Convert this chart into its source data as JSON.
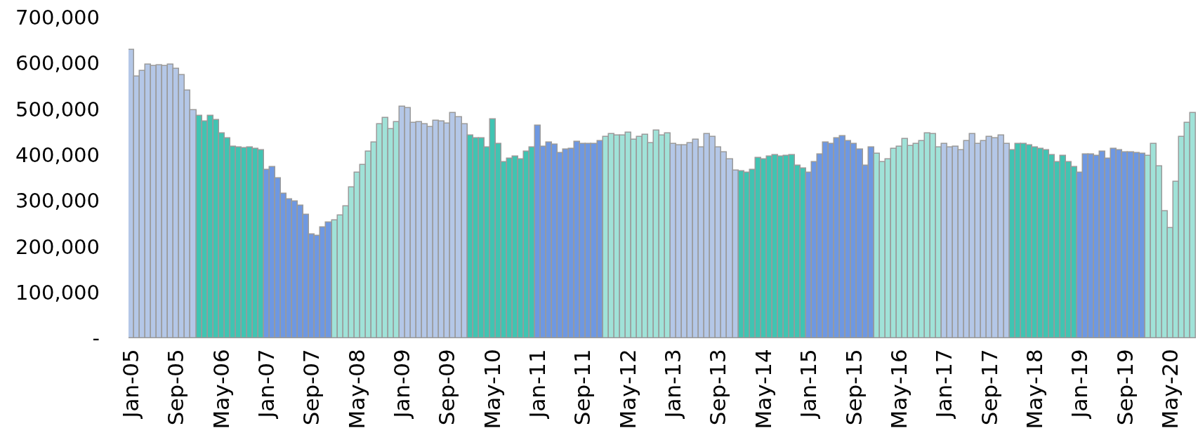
{
  "chart_data": {
    "type": "bar",
    "categories": [
      "Jan-05",
      null,
      null,
      null,
      null,
      null,
      null,
      null,
      "Sep-05",
      null,
      null,
      null,
      null,
      null,
      null,
      null,
      "May-06",
      null,
      null,
      null,
      null,
      null,
      null,
      null,
      "Jan-07",
      null,
      null,
      null,
      null,
      null,
      null,
      null,
      "Sep-07",
      null,
      null,
      null,
      null,
      null,
      null,
      null,
      "May-08",
      null,
      null,
      null,
      null,
      null,
      null,
      null,
      "Jan-09",
      null,
      null,
      null,
      null,
      null,
      null,
      null,
      "Sep-09",
      null,
      null,
      null,
      null,
      null,
      null,
      null,
      "May-10",
      null,
      null,
      null,
      null,
      null,
      null,
      null,
      "Jan-11",
      null,
      null,
      null,
      null,
      null,
      null,
      null,
      "Sep-11",
      null,
      null,
      null,
      null,
      null,
      null,
      null,
      "May-12",
      null,
      null,
      null,
      null,
      null,
      null,
      null,
      "Jan-13",
      null,
      null,
      null,
      null,
      null,
      null,
      null,
      "Sep-13",
      null,
      null,
      null,
      null,
      null,
      null,
      null,
      "May-14",
      null,
      null,
      null,
      null,
      null,
      null,
      null,
      "Jan-15",
      null,
      null,
      null,
      null,
      null,
      null,
      null,
      "Sep-15",
      null,
      null,
      null,
      null,
      null,
      null,
      null,
      "May-16",
      null,
      null,
      null,
      null,
      null,
      null,
      null,
      "Jan-17",
      null,
      null,
      null,
      null,
      null,
      null,
      null,
      "Sep-17",
      null,
      null,
      null,
      null,
      null,
      null,
      null,
      "May-18",
      null,
      null,
      null,
      null,
      null,
      null,
      null,
      "Jan-19",
      null,
      null,
      null,
      null,
      null,
      null,
      null,
      "Sep-19",
      null,
      null,
      null,
      null,
      null,
      null,
      null,
      "May-20",
      null,
      null,
      null,
      null
    ],
    "values": [
      630000,
      571000,
      584000,
      598000,
      594000,
      596000,
      594000,
      598000,
      588000,
      574000,
      541000,
      498000,
      486000,
      473000,
      485000,
      476000,
      448000,
      437000,
      418000,
      416000,
      415000,
      416000,
      414000,
      410000,
      367000,
      373000,
      350000,
      316000,
      304000,
      298000,
      289000,
      270000,
      226000,
      224000,
      242000,
      252000,
      258000,
      268000,
      288000,
      330000,
      362000,
      379000,
      407000,
      428000,
      467000,
      481000,
      457000,
      472000,
      506000,
      503000,
      470000,
      472000,
      467000,
      461000,
      475000,
      473000,
      469000,
      491000,
      483000,
      467000,
      443000,
      437000,
      437000,
      416000,
      478000,
      425000,
      384000,
      392000,
      397000,
      390000,
      407000,
      417000,
      464000,
      418000,
      427000,
      422000,
      404000,
      412000,
      414000,
      429000,
      424000,
      425000,
      425000,
      430000,
      439000,
      445000,
      443000,
      442000,
      449000,
      434000,
      439000,
      444000,
      426000,
      453000,
      443000,
      447000,
      425000,
      421000,
      421000,
      426000,
      434000,
      417000,
      445000,
      439000,
      417000,
      406000,
      390000,
      366000,
      364000,
      361000,
      367000,
      393000,
      390000,
      396000,
      400000,
      396000,
      399000,
      400000,
      377000,
      370000,
      362000,
      384000,
      402000,
      427000,
      425000,
      437000,
      441000,
      431000,
      425000,
      412000,
      377000,
      416000,
      403000,
      384000,
      390000,
      414000,
      418000,
      435000,
      419000,
      424000,
      431000,
      448000,
      446000,
      417000,
      424000,
      417000,
      418000,
      410000,
      431000,
      445000,
      425000,
      430000,
      439000,
      437000,
      443000,
      424000,
      411000,
      425000,
      425000,
      421000,
      416000,
      413000,
      410000,
      400000,
      385000,
      398000,
      385000,
      373000,
      361000,
      402000,
      401000,
      399000,
      408000,
      392000,
      413000,
      410000,
      406000,
      406000,
      405000,
      403000,
      399000,
      425000,
      375000,
      277000,
      240000,
      342000,
      440000,
      470000,
      491000
    ],
    "colors": [
      "#b4c7e7",
      "#b4c7e7",
      "#b4c7e7",
      "#b4c7e7",
      "#b4c7e7",
      "#b4c7e7",
      "#b4c7e7",
      "#b4c7e7",
      "#b4c7e7",
      "#b4c7e7",
      "#b4c7e7",
      "#b4c7e7",
      "#40c4b2",
      "#40c4b2",
      "#40c4b2",
      "#40c4b2",
      "#40c4b2",
      "#40c4b2",
      "#40c4b2",
      "#40c4b2",
      "#40c4b2",
      "#40c4b2",
      "#40c4b2",
      "#40c4b2",
      "#6e98e2",
      "#6e98e2",
      "#6e98e2",
      "#6e98e2",
      "#6e98e2",
      "#6e98e2",
      "#6e98e2",
      "#6e98e2",
      "#6e98e2",
      "#6e98e2",
      "#6e98e2",
      "#6e98e2",
      "#a0e2d8",
      "#a0e2d8",
      "#a0e2d8",
      "#a0e2d8",
      "#a0e2d8",
      "#a0e2d8",
      "#a0e2d8",
      "#a0e2d8",
      "#a0e2d8",
      "#a0e2d8",
      "#a0e2d8",
      "#a0e2d8",
      "#b4c7e7",
      "#b4c7e7",
      "#b4c7e7",
      "#b4c7e7",
      "#b4c7e7",
      "#b4c7e7",
      "#b4c7e7",
      "#b4c7e7",
      "#b4c7e7",
      "#b4c7e7",
      "#b4c7e7",
      "#b4c7e7",
      "#40c4b2",
      "#40c4b2",
      "#40c4b2",
      "#40c4b2",
      "#40c4b2",
      "#40c4b2",
      "#40c4b2",
      "#40c4b2",
      "#40c4b2",
      "#40c4b2",
      "#40c4b2",
      "#40c4b2",
      "#6e98e2",
      "#6e98e2",
      "#6e98e2",
      "#6e98e2",
      "#6e98e2",
      "#6e98e2",
      "#6e98e2",
      "#6e98e2",
      "#6e98e2",
      "#6e98e2",
      "#6e98e2",
      "#6e98e2",
      "#a0e2d8",
      "#a0e2d8",
      "#a0e2d8",
      "#a0e2d8",
      "#a0e2d8",
      "#a0e2d8",
      "#a0e2d8",
      "#a0e2d8",
      "#a0e2d8",
      "#a0e2d8",
      "#a0e2d8",
      "#a0e2d8",
      "#b4c7e7",
      "#b4c7e7",
      "#b4c7e7",
      "#b4c7e7",
      "#b4c7e7",
      "#b4c7e7",
      "#b4c7e7",
      "#b4c7e7",
      "#b4c7e7",
      "#b4c7e7",
      "#b4c7e7",
      "#b4c7e7",
      "#40c4b2",
      "#40c4b2",
      "#40c4b2",
      "#40c4b2",
      "#40c4b2",
      "#40c4b2",
      "#40c4b2",
      "#40c4b2",
      "#40c4b2",
      "#40c4b2",
      "#40c4b2",
      "#40c4b2",
      "#6e98e2",
      "#6e98e2",
      "#6e98e2",
      "#6e98e2",
      "#6e98e2",
      "#6e98e2",
      "#6e98e2",
      "#6e98e2",
      "#6e98e2",
      "#6e98e2",
      "#6e98e2",
      "#6e98e2",
      "#a0e2d8",
      "#a0e2d8",
      "#a0e2d8",
      "#a0e2d8",
      "#a0e2d8",
      "#a0e2d8",
      "#a0e2d8",
      "#a0e2d8",
      "#a0e2d8",
      "#a0e2d8",
      "#a0e2d8",
      "#a0e2d8",
      "#b4c7e7",
      "#b4c7e7",
      "#b4c7e7",
      "#b4c7e7",
      "#b4c7e7",
      "#b4c7e7",
      "#b4c7e7",
      "#b4c7e7",
      "#b4c7e7",
      "#b4c7e7",
      "#b4c7e7",
      "#b4c7e7",
      "#40c4b2",
      "#40c4b2",
      "#40c4b2",
      "#40c4b2",
      "#40c4b2",
      "#40c4b2",
      "#40c4b2",
      "#40c4b2",
      "#40c4b2",
      "#40c4b2",
      "#40c4b2",
      "#40c4b2",
      "#6e98e2",
      "#6e98e2",
      "#6e98e2",
      "#6e98e2",
      "#6e98e2",
      "#6e98e2",
      "#6e98e2",
      "#6e98e2",
      "#6e98e2",
      "#6e98e2",
      "#6e98e2",
      "#6e98e2",
      "#a0e2d8",
      "#a0e2d8",
      "#a0e2d8",
      "#a0e2d8",
      "#a0e2d8",
      "#a0e2d8",
      "#a0e2d8",
      "#a0e2d8",
      "#a0e2d8"
    ],
    "ylim": [
      0,
      700000
    ],
    "yticks": [
      {
        "value": 0,
        "label": "-"
      },
      {
        "value": 100000,
        "label": "100,000"
      },
      {
        "value": 200000,
        "label": "200,000"
      },
      {
        "value": 300000,
        "label": "300,000"
      },
      {
        "value": 400000,
        "label": "400,000"
      },
      {
        "value": 500000,
        "label": "500,000"
      },
      {
        "value": 600000,
        "label": "600,000"
      },
      {
        "value": 700000,
        "label": "700,000"
      }
    ]
  }
}
